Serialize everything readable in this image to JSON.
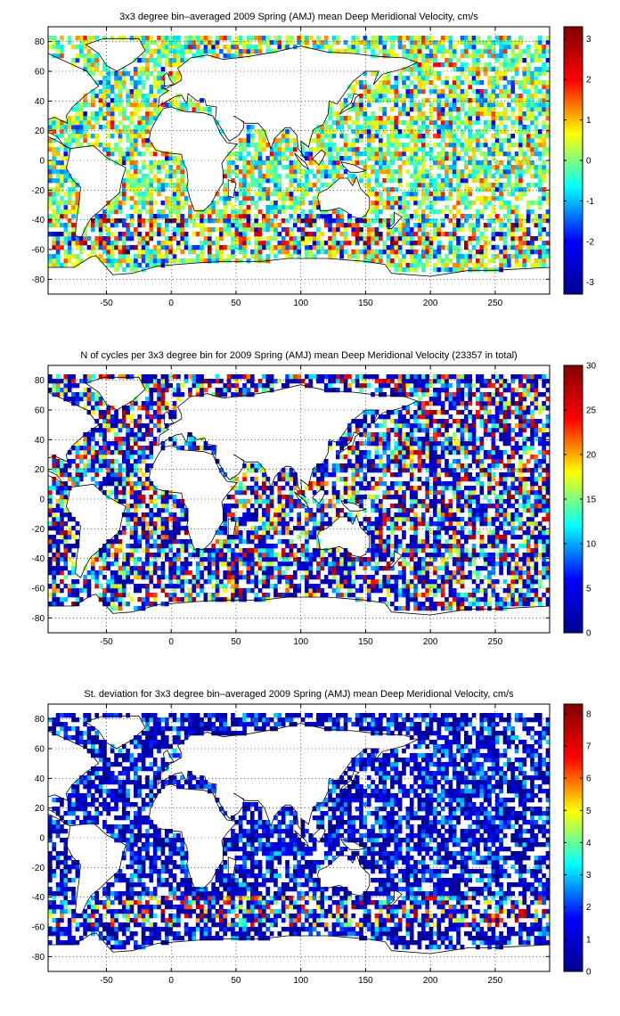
{
  "chart_data": [
    {
      "type": "heatmap",
      "title": "3x3 degree bin–averaged 2009 Spring (AMJ) mean Deep Meridional Velocity, cm/s",
      "xlabel": "",
      "ylabel": "",
      "xlim": [
        -95,
        292
      ],
      "ylim": [
        -90,
        90
      ],
      "x_ticks": [
        -50,
        0,
        50,
        100,
        150,
        200,
        250
      ],
      "y_ticks": [
        80,
        60,
        40,
        20,
        0,
        -20,
        -40,
        -60,
        -80
      ],
      "grid": true,
      "colorbar": {
        "placement": "right",
        "range": [
          -3.3,
          3.3
        ],
        "ticks": [
          3,
          2,
          1,
          0,
          -1,
          -2,
          -3
        ]
      },
      "colormap": [
        "#00008f",
        "#0000ff",
        "#00ffff",
        "#ffff00",
        "#ff0000",
        "#800000"
      ],
      "bin_size_deg": 3,
      "cells_note_values": {
        "land_masked": true
      },
      "seed": 11
    },
    {
      "type": "heatmap",
      "title": "N of cycles per 3x3 degree bin for 2009 Spring (AMJ) mean Deep Meridional Velocity (23357 in total)",
      "xlabel": "",
      "ylabel": "",
      "xlim": [
        -95,
        292
      ],
      "ylim": [
        -90,
        90
      ],
      "x_ticks": [
        -50,
        0,
        50,
        100,
        150,
        200,
        250
      ],
      "y_ticks": [
        80,
        60,
        40,
        20,
        0,
        -20,
        -40,
        -60,
        -80
      ],
      "grid": true,
      "colorbar": {
        "placement": "right",
        "range": [
          0,
          30
        ],
        "ticks": [
          30,
          25,
          20,
          15,
          10,
          5,
          0
        ]
      },
      "colormap": [
        "#00008f",
        "#0000ff",
        "#00ffff",
        "#ffff00",
        "#ff0000",
        "#800000"
      ],
      "bin_size_deg": 3,
      "cells_note_values": {
        "land_masked": true
      },
      "seed": 29
    },
    {
      "type": "heatmap",
      "title": "St. deviation for 3x3 degree bin–averaged 2009 Spring (AMJ) mean Deep Meridional Velocity, cm/s",
      "xlabel": "",
      "ylabel": "",
      "xlim": [
        -95,
        292
      ],
      "ylim": [
        -90,
        90
      ],
      "x_ticks": [
        -50,
        0,
        50,
        100,
        150,
        200,
        250
      ],
      "y_ticks": [
        80,
        60,
        40,
        20,
        0,
        -20,
        -40,
        -60,
        -80
      ],
      "grid": true,
      "colorbar": {
        "placement": "right",
        "range": [
          0,
          8.3
        ],
        "ticks": [
          8,
          7,
          6,
          5,
          4,
          3,
          2,
          1,
          0
        ]
      },
      "colormap": [
        "#00008f",
        "#0000ff",
        "#00ffff",
        "#ffff00",
        "#ff0000",
        "#800000"
      ],
      "bin_size_deg": 3,
      "cells_note_values": {
        "land_masked": true
      },
      "seed": 47
    }
  ]
}
